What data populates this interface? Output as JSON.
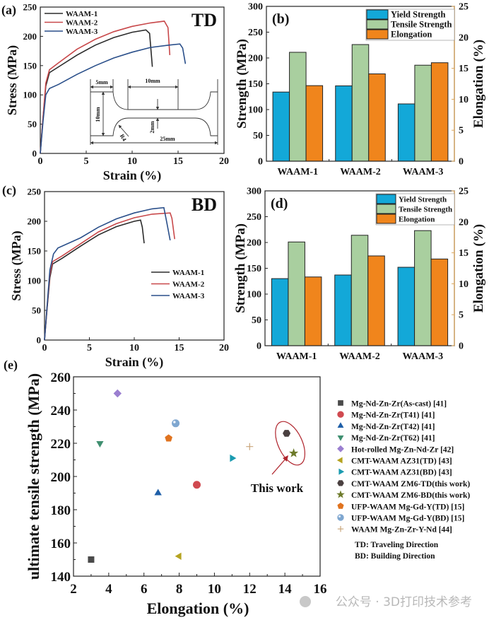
{
  "panels": {
    "a": "(a)",
    "b": "(b)",
    "c": "(c)",
    "d": "(d)",
    "e": "(e)"
  },
  "watermark": "公众号 · 3D打印技术参考",
  "chart_data": [
    {
      "id": "a",
      "type": "line",
      "direction_label": "TD",
      "direction_color": "#2a86b8",
      "xlabel": "Strain (%)",
      "ylabel": "Stress (MPa)",
      "xlim": [
        0,
        20
      ],
      "ylim": [
        0,
        250
      ],
      "xticks": [
        0,
        5,
        10,
        15,
        20
      ],
      "yticks": [
        0,
        50,
        100,
        150,
        200,
        250
      ],
      "legend": "top-left",
      "series": [
        {
          "name": "WAAM-1",
          "color": "#2b2b2b",
          "points": [
            [
              0,
              0
            ],
            [
              0.3,
              60
            ],
            [
              0.6,
              115
            ],
            [
              1,
              138
            ],
            [
              2,
              148
            ],
            [
              4,
              168
            ],
            [
              6,
              185
            ],
            [
              8,
              198
            ],
            [
              10,
              207
            ],
            [
              11.5,
              211
            ],
            [
              11.9,
              205
            ],
            [
              12.2,
              148
            ]
          ]
        },
        {
          "name": "WAAM-2",
          "color": "#c8484a",
          "points": [
            [
              0,
              0
            ],
            [
              0.3,
              62
            ],
            [
              0.6,
              120
            ],
            [
              1,
              143
            ],
            [
              2,
              155
            ],
            [
              4,
              178
            ],
            [
              6,
              195
            ],
            [
              8,
              208
            ],
            [
              10,
              217
            ],
            [
              12,
              223
            ],
            [
              13.5,
              226
            ],
            [
              13.9,
              215
            ],
            [
              14.1,
              168
            ]
          ]
        },
        {
          "name": "WAAM-3",
          "color": "#2a4f8a",
          "points": [
            [
              0,
              0
            ],
            [
              0.3,
              55
            ],
            [
              0.6,
              100
            ],
            [
              1,
              111
            ],
            [
              2,
              118
            ],
            [
              4,
              135
            ],
            [
              6,
              150
            ],
            [
              8,
              163
            ],
            [
              10,
              173
            ],
            [
              12,
              181
            ],
            [
              14,
              185
            ],
            [
              15.2,
              187
            ],
            [
              15.5,
              180
            ],
            [
              15.8,
              153
            ]
          ]
        }
      ],
      "inset": {
        "grip_width": "5mm",
        "gauge_length": "10mm",
        "grip_height": "10mm",
        "gauge_width": "2mm",
        "radius": "R4",
        "total_length": "25mm"
      }
    },
    {
      "id": "b",
      "type": "bar",
      "categories": [
        "WAAM-1",
        "WAAM-2",
        "WAAM-3"
      ],
      "ylabel": "Strength (MPa)",
      "y2label": "Elongation (%)",
      "y2color": "#d9a55a",
      "ylim": [
        0,
        300
      ],
      "y2lim": [
        0,
        25
      ],
      "yticks": [
        0,
        50,
        100,
        150,
        200,
        250,
        300
      ],
      "y2ticks": [
        0,
        5,
        10,
        15,
        20,
        25
      ],
      "legend": "top-right",
      "series": [
        {
          "name": "Yield Strength",
          "axis": "left",
          "color": "#13a8d8",
          "values": [
            134,
            146,
            111
          ]
        },
        {
          "name": "Tensile Strength",
          "axis": "left",
          "color": "#a9cf9f",
          "values": [
            211,
            226,
            186
          ]
        },
        {
          "name": "Elongation",
          "axis": "right",
          "color": "#f0851c",
          "values": [
            12.2,
            14.1,
            15.9
          ]
        }
      ]
    },
    {
      "id": "c",
      "type": "line",
      "direction_label": "BD",
      "direction_color": "#2a86b8",
      "xlabel": "Strain (%)",
      "ylabel": "Stress (MPa)",
      "xlim": [
        0,
        20
      ],
      "ylim": [
        0,
        250
      ],
      "xticks": [
        0,
        5,
        10,
        15,
        20
      ],
      "yticks": [
        0,
        50,
        100,
        150,
        200,
        250
      ],
      "legend": "center-right",
      "series": [
        {
          "name": "WAAM-1",
          "color": "#2b2b2b",
          "points": [
            [
              0,
              0
            ],
            [
              0.3,
              55
            ],
            [
              0.6,
              105
            ],
            [
              0.9,
              128
            ],
            [
              2,
              138
            ],
            [
              4,
              158
            ],
            [
              6,
              177
            ],
            [
              8,
              191
            ],
            [
              10,
              200
            ],
            [
              10.7,
              202
            ],
            [
              10.9,
              190
            ],
            [
              11.1,
              163
            ]
          ]
        },
        {
          "name": "WAAM-2",
          "color": "#c8484a",
          "points": [
            [
              0,
              0
            ],
            [
              0.3,
              58
            ],
            [
              0.6,
              110
            ],
            [
              0.9,
              132
            ],
            [
              2,
              142
            ],
            [
              4,
              162
            ],
            [
              6,
              182
            ],
            [
              8,
              196
            ],
            [
              10,
              206
            ],
            [
              12,
              212
            ],
            [
              14,
              214
            ],
            [
              14.2,
              205
            ],
            [
              14.5,
              170
            ]
          ]
        },
        {
          "name": "WAAM-3",
          "color": "#2a4f8a",
          "points": [
            [
              0,
              0
            ],
            [
              0.3,
              60
            ],
            [
              0.6,
              118
            ],
            [
              1,
              145
            ],
            [
              1.5,
              155
            ],
            [
              4,
              172
            ],
            [
              6,
              190
            ],
            [
              8,
              204
            ],
            [
              10,
              214
            ],
            [
              12,
              221
            ],
            [
              13.3,
              223
            ],
            [
              13.6,
              200
            ],
            [
              14,
              168
            ]
          ]
        }
      ]
    },
    {
      "id": "d",
      "type": "bar",
      "categories": [
        "WAAM-1",
        "WAAM-2",
        "WAAM-3"
      ],
      "ylabel": "Strength (MPa)",
      "y2label": "Elongation (%)",
      "y2color": "#d9a55a",
      "ylim": [
        0,
        300
      ],
      "y2lim": [
        0,
        25
      ],
      "yticks": [
        0,
        50,
        100,
        150,
        200,
        250,
        300
      ],
      "y2ticks": [
        0,
        5,
        10,
        15,
        20,
        25
      ],
      "legend": "top-right",
      "series": [
        {
          "name": "Yield Strength",
          "axis": "left",
          "color": "#13a8d8",
          "values": [
            130,
            137,
            152
          ]
        },
        {
          "name": "Tensile Strength",
          "axis": "left",
          "color": "#a9cf9f",
          "values": [
            201,
            214,
            223
          ]
        },
        {
          "name": "Elongation",
          "axis": "right",
          "color": "#f0851c",
          "values": [
            11.1,
            14.5,
            14.0
          ]
        }
      ]
    },
    {
      "id": "e",
      "type": "scatter",
      "xlabel": "Elongation (%)",
      "ylabel": "ultimate tensile strength (MPa)",
      "xlim": [
        2,
        16
      ],
      "ylim": [
        140,
        260
      ],
      "xticks": [
        2,
        4,
        6,
        8,
        10,
        12,
        14,
        16
      ],
      "yticks": [
        140,
        160,
        180,
        200,
        220,
        240,
        260
      ],
      "legend": "right",
      "annotation": "This work",
      "annotation_color": "#b0262e",
      "notes": [
        "TD: Traveling Direction",
        "BD: Building Direction"
      ],
      "series": [
        {
          "name": "Mg-Nd-Zn-Zr(As-cast) [41]",
          "marker": "square",
          "color": "#4a4a4a",
          "x": 3,
          "y": 150
        },
        {
          "name": "Mg-Nd-Zn-Zr(T41) [41]",
          "marker": "circle",
          "color": "#d04a50",
          "x": 9,
          "y": 195
        },
        {
          "name": "Mg-Nd-Zn-Zr(T42) [41]",
          "marker": "triangle-up",
          "color": "#1f5fa8",
          "x": 6.8,
          "y": 190
        },
        {
          "name": "Mg-Nd-Zn-Zr(T62) [41]",
          "marker": "triangle-down",
          "color": "#3f8f70",
          "x": 3.5,
          "y": 220
        },
        {
          "name": "Hot-rolled Mg-Zn-Nd-Zr [42]",
          "marker": "diamond",
          "color": "#9b7fd0",
          "x": 4.5,
          "y": 250
        },
        {
          "name": "CMT-WAAM AZ31(TD) [43]",
          "marker": "triangle-left",
          "color": "#b5a320",
          "x": 8,
          "y": 152
        },
        {
          "name": "CMT-WAAM AZ31(BD) [43]",
          "marker": "triangle-right",
          "color": "#1b9bb0",
          "x": 11,
          "y": 211
        },
        {
          "name": "CMT-WAAM ZM6-TD(this work)",
          "marker": "hexagon",
          "color": "#4a4040",
          "x": 14.1,
          "y": 226,
          "highlight": true
        },
        {
          "name": "CMT-WAAM ZM6-BD(this work)",
          "marker": "star",
          "color": "#6d7a2a",
          "x": 14.5,
          "y": 214,
          "highlight": true
        },
        {
          "name": "UFP-WAAM Mg-Gd-Y(TD) [15]",
          "marker": "pentagon",
          "color": "#e0731f",
          "x": 7.4,
          "y": 223
        },
        {
          "name": "UFP-WAAM Mg-Gd-Y(BD) [15]",
          "marker": "sphere",
          "color": "#7fa7d0",
          "x": 7.8,
          "y": 232
        },
        {
          "name": "WAAM Mg-Zn-Zr-Y-Nd [44]",
          "marker": "plus",
          "color": "#c9a57a",
          "x": 12,
          "y": 218
        }
      ]
    }
  ]
}
